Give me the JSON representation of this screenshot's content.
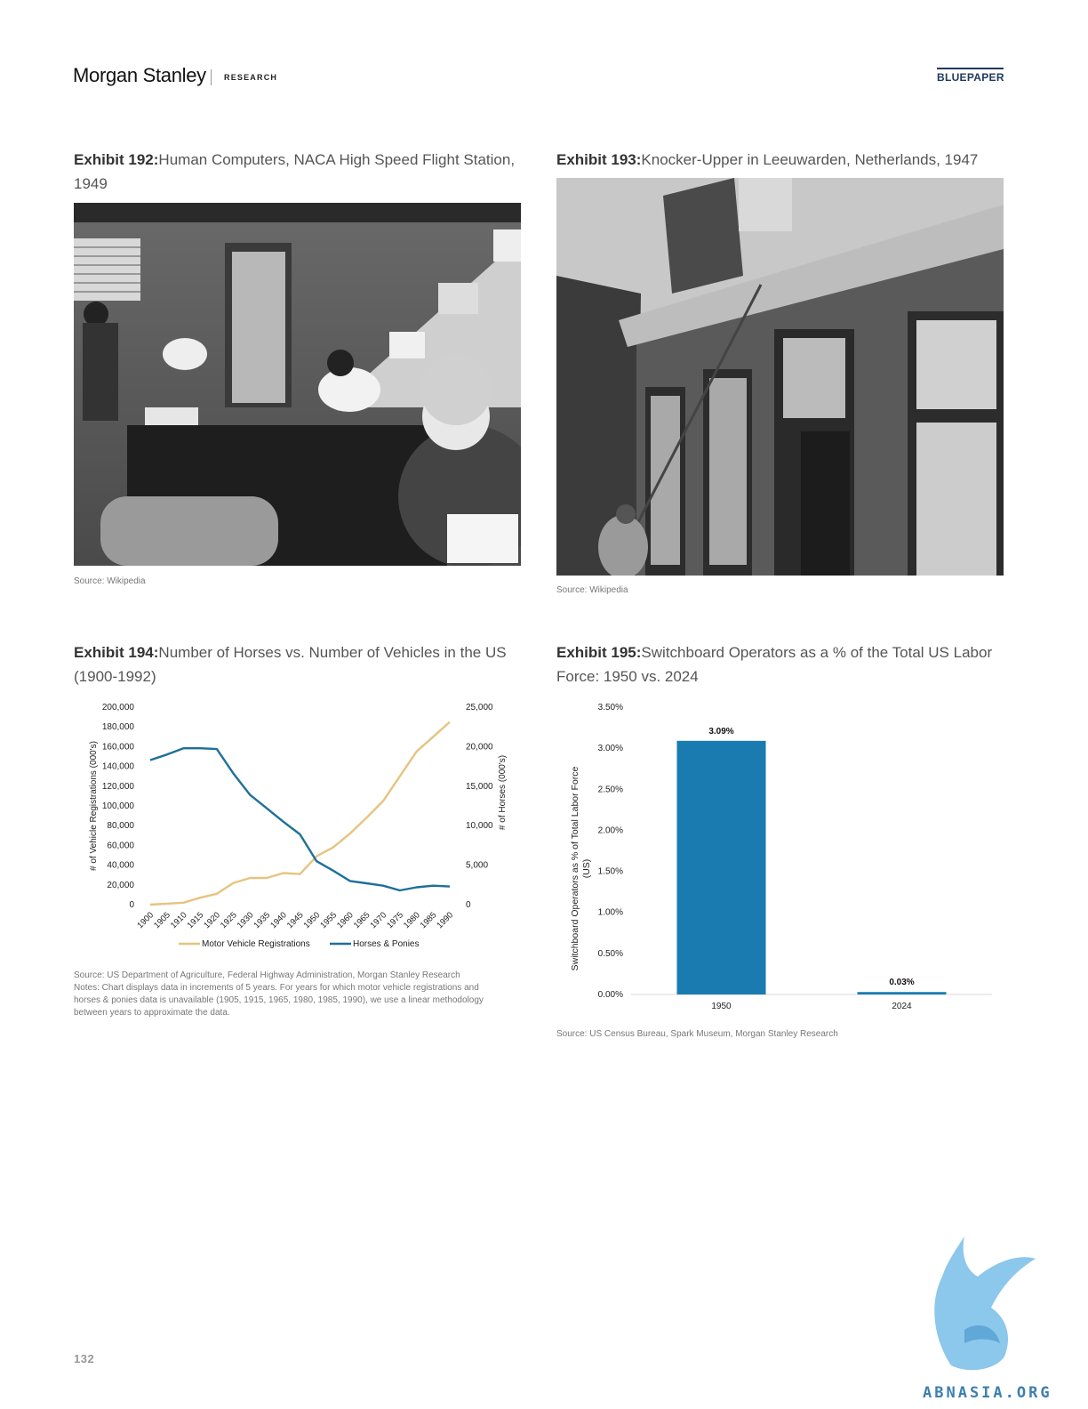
{
  "header": {
    "brand": "Morgan Stanley",
    "section": "RESEARCH",
    "doc_type": "BLUEPAPER"
  },
  "exhibit_192": {
    "label": "Exhibit 192:",
    "title": "Human Computers, NACA High Speed Flight Station, 1949",
    "source": "Source: Wikipedia"
  },
  "exhibit_193": {
    "label": "Exhibit 193:",
    "title": "Knocker-Upper in Leeuwarden, Netherlands, 1947",
    "source": "Source: Wikipedia"
  },
  "exhibit_194": {
    "label": "Exhibit 194:",
    "title": "Number of Horses vs. Number of Vehicles in the US (1900-1992)",
    "source": "Source: US Department of Agriculture, Federal Highway Administration, Morgan Stanley Research",
    "notes_1": "Notes: Chart displays data in increments of 5 years. For years for which motor vehicle registrations and",
    "notes_2": "horses & ponies data is unavailable (1905, 1915, 1965, 1980, 1985, 1990), we use a linear methodology",
    "notes_3": "between years to approximate the data."
  },
  "exhibit_195": {
    "label": "Exhibit 195:",
    "title": "Switchboard Operators as a % of the Total US Labor Force: 1950 vs. 2024",
    "source": "Source: US Census Bureau, Spark Museum, Morgan Stanley Research"
  },
  "chart_data": [
    {
      "type": "line",
      "x": [
        1900,
        1905,
        1910,
        1915,
        1920,
        1925,
        1930,
        1935,
        1940,
        1945,
        1950,
        1955,
        1960,
        1965,
        1970,
        1975,
        1980,
        1985,
        1990
      ],
      "x_tick_labels": [
        "1900",
        "1905",
        "1910",
        "1915",
        "1920",
        "1925",
        "1930",
        "1935",
        "1940",
        "1945",
        "1950",
        "1955",
        "1960",
        "1965",
        "1970",
        "1975",
        "1980",
        "1985",
        "1990"
      ],
      "series": [
        {
          "name": "Motor Vehicle Registrations",
          "axis": "left",
          "color": "#e6c47f",
          "values": [
            8,
            1000,
            2000,
            7000,
            11000,
            22000,
            27000,
            27000,
            32000,
            31000,
            49000,
            58000,
            72000,
            88000,
            105000,
            130000,
            155000,
            170000,
            185000
          ]
        },
        {
          "name": "Horses & Ponies",
          "axis": "right",
          "color": "#1f6f9a",
          "values": [
            18300,
            19000,
            19800,
            19800,
            19700,
            16600,
            13900,
            12200,
            10500,
            8900,
            5500,
            4300,
            3000,
            2700,
            2400,
            1800,
            2200,
            2400,
            2300
          ]
        }
      ],
      "ylabel": "# of Vehicle Registrations (000's)",
      "y2label": "# of Horses (000's)",
      "ylim": [
        0,
        200000
      ],
      "y2lim": [
        0,
        25000
      ],
      "y_ticks": [
        "0",
        "20,000",
        "40,000",
        "60,000",
        "80,000",
        "100,000",
        "120,000",
        "140,000",
        "160,000",
        "180,000",
        "200,000"
      ],
      "y2_ticks": [
        "0",
        "5,000",
        "10,000",
        "15,000",
        "20,000",
        "25,000"
      ],
      "legend_position": "bottom",
      "grid": false
    },
    {
      "type": "bar",
      "categories": [
        "1950",
        "2024"
      ],
      "values": [
        3.09,
        0.03
      ],
      "data_labels": [
        "3.09%",
        "0.03%"
      ],
      "color": "#1a7bb0",
      "ylabel_1": "Switchboard Operators as % of Total Labor Force",
      "ylabel_2": "(US)",
      "ylim": [
        0,
        3.5
      ],
      "y_ticks": [
        "0.00%",
        "0.50%",
        "1.00%",
        "1.50%",
        "2.00%",
        "2.50%",
        "3.00%",
        "3.50%"
      ],
      "grid": false
    }
  ],
  "footer": {
    "page_number": "132",
    "watermark": "ABNASIA.ORG"
  }
}
